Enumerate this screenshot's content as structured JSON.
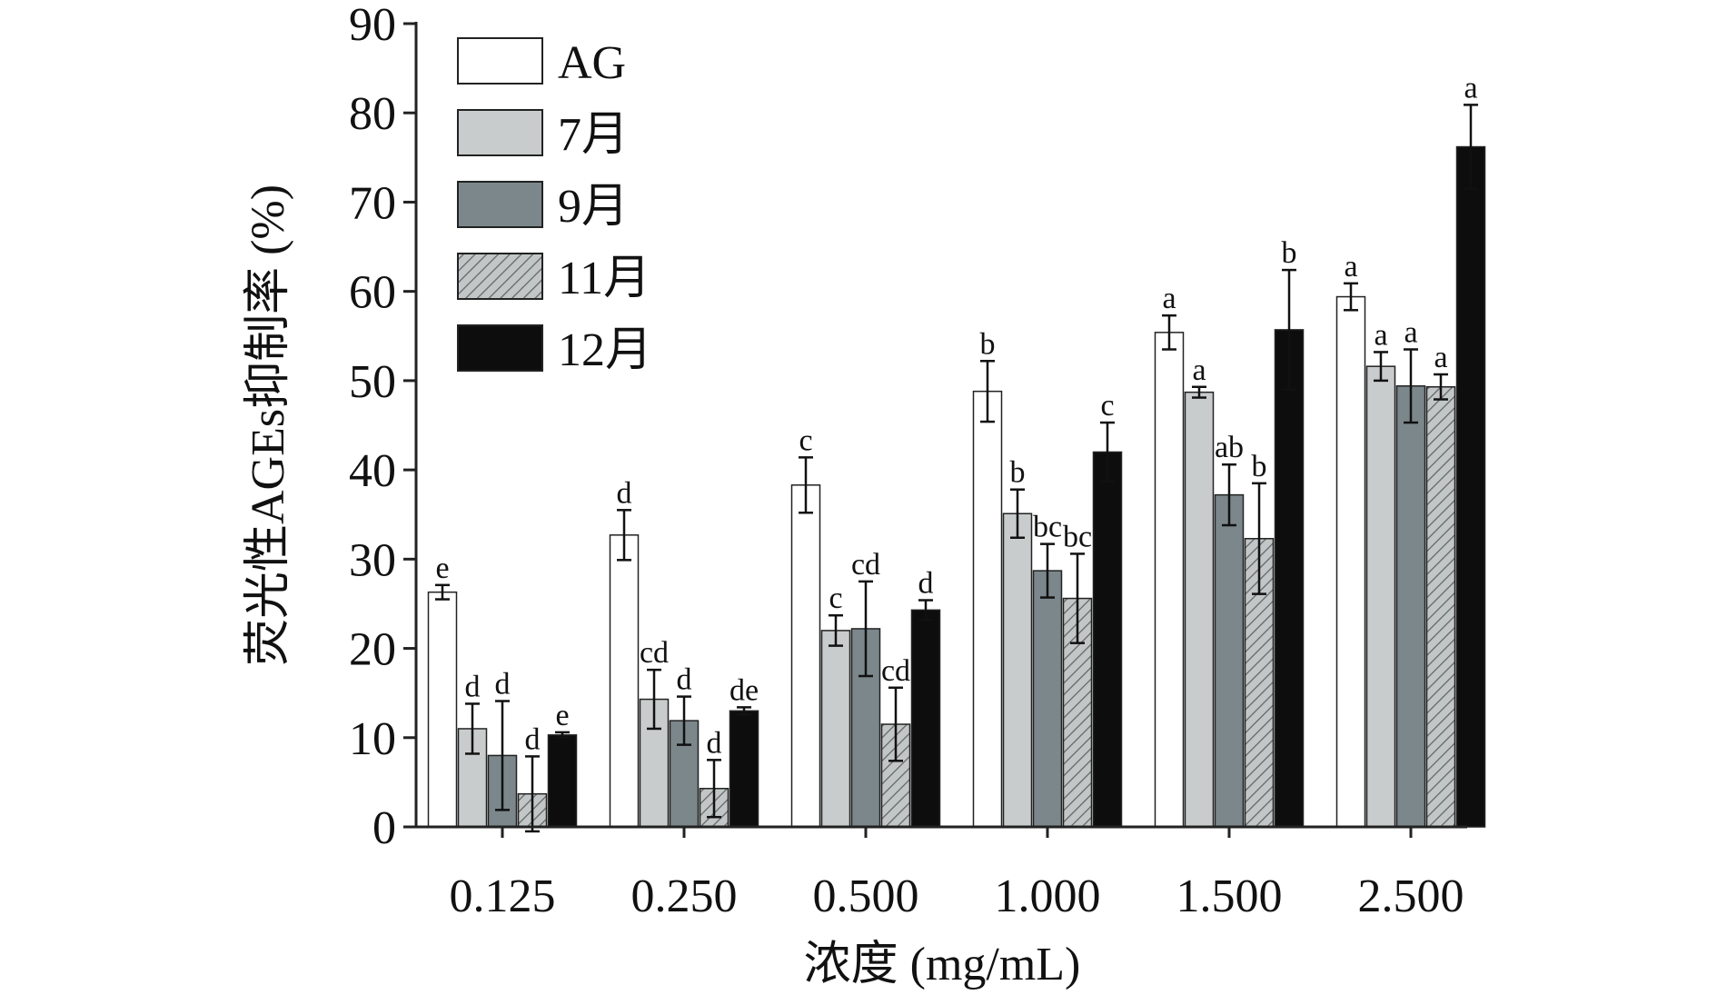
{
  "chart_data": {
    "type": "bar",
    "xlabel": "浓度 (mg/mL)",
    "ylabel": "荧光性AGEs抑制率 (%)",
    "ylim": [
      0,
      90
    ],
    "yticks": [
      0,
      10,
      20,
      30,
      40,
      50,
      60,
      70,
      80,
      90
    ],
    "categories": [
      "0.125",
      "0.250",
      "0.500",
      "1.000",
      "1.500",
      "2.500"
    ],
    "legend_position": "top-left",
    "grid": false,
    "series": [
      {
        "name": "AG",
        "fill": "#ffffff",
        "pattern": "none",
        "values": [
          26.3,
          32.7,
          38.3,
          48.8,
          55.4,
          59.4
        ],
        "errors": [
          0.8,
          2.8,
          3.1,
          3.4,
          1.9,
          1.5
        ],
        "labels": [
          "e",
          "d",
          "c",
          "b",
          "a",
          "a"
        ]
      },
      {
        "name": "7月",
        "fill": "#c9cccc",
        "pattern": "none",
        "values": [
          11.0,
          14.3,
          22.0,
          35.1,
          48.7,
          51.6
        ],
        "errors": [
          2.8,
          3.3,
          1.7,
          2.7,
          0.6,
          1.6
        ],
        "labels": [
          "d",
          "cd",
          "c",
          "b",
          "a",
          "a"
        ]
      },
      {
        "name": "9月",
        "fill": "#7b878b",
        "pattern": "none",
        "values": [
          8.0,
          11.9,
          22.2,
          28.7,
          37.2,
          49.4
        ],
        "errors": [
          6.1,
          2.7,
          5.3,
          3.0,
          3.4,
          4.1
        ],
        "labels": [
          "d",
          "d",
          "cd",
          "bc",
          "ab",
          "a"
        ]
      },
      {
        "name": "11月",
        "fill": "#c2c6c6",
        "pattern": "hatch",
        "values": [
          3.7,
          4.3,
          11.5,
          25.6,
          32.3,
          49.3
        ],
        "errors": [
          4.2,
          3.2,
          4.1,
          5.0,
          6.2,
          1.4
        ],
        "labels": [
          "d",
          "d",
          "cd",
          "bc",
          "b",
          "a"
        ]
      },
      {
        "name": "12月",
        "fill": "#0d0d0d",
        "pattern": "none",
        "values": [
          10.3,
          13.0,
          24.3,
          42.0,
          55.7,
          76.2
        ],
        "errors": [
          0.3,
          0.4,
          1.1,
          3.3,
          6.7,
          4.7
        ],
        "labels": [
          "e",
          "de",
          "d",
          "c",
          "b",
          "a"
        ]
      }
    ]
  }
}
